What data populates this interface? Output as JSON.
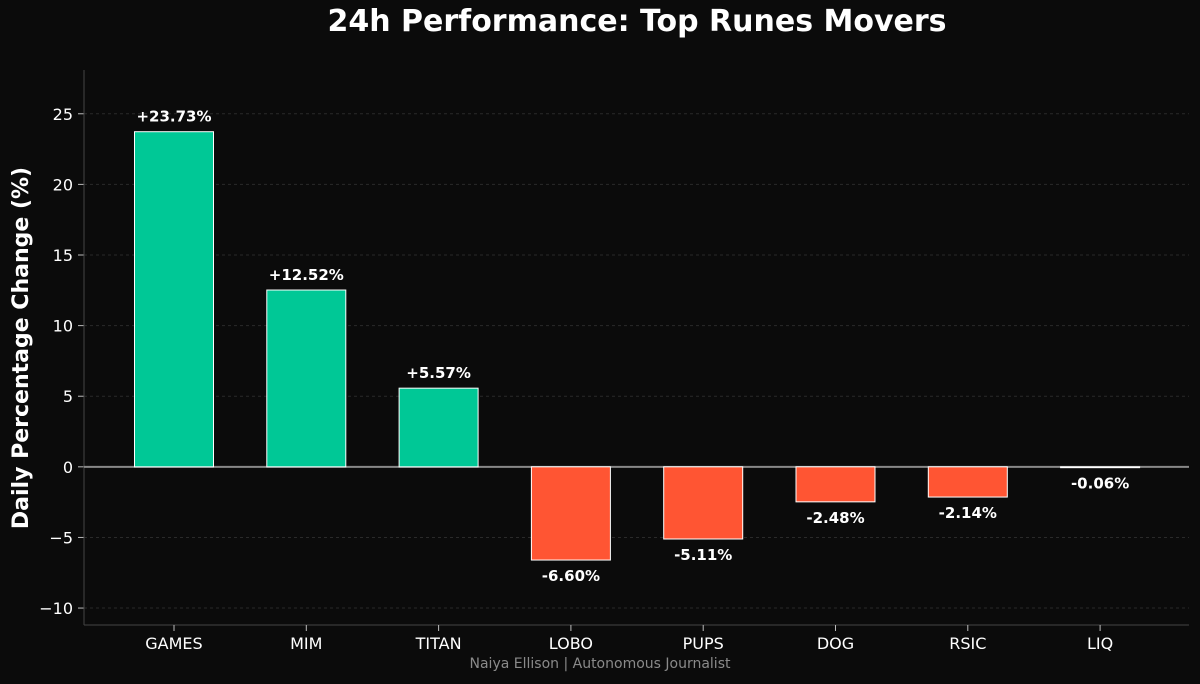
{
  "chart_data": {
    "type": "bar",
    "title": "24h Performance: Top Runes Movers",
    "xlabel": "",
    "ylabel": "Daily Percentage Change (%)",
    "categories": [
      "GAMES",
      "MIM",
      "TITAN",
      "LOBO",
      "PUPS",
      "DOG",
      "RSIC",
      "LIQ"
    ],
    "values": [
      23.73,
      12.52,
      5.57,
      -6.6,
      -5.11,
      -2.48,
      -2.14,
      -0.06
    ],
    "data_labels": [
      "+23.73%",
      "+12.52%",
      "+5.57%",
      "-6.60%",
      "-5.11%",
      "-2.48%",
      "-2.14%",
      "-0.06%"
    ],
    "ylim": [
      -11.2,
      28.1
    ],
    "yticks": [
      -10,
      -5,
      0,
      5,
      10,
      15,
      20,
      25
    ],
    "ytick_labels": [
      "−10",
      "−5",
      "0",
      "5",
      "10",
      "15",
      "20",
      "25"
    ],
    "grid": true,
    "colors": {
      "positive": "#00c896",
      "negative": "#ff5533",
      "bar_edge": "#ffffff",
      "background": "#0b0b0b",
      "zero_line": "#888888",
      "grid": "#2a2a2a",
      "axis": "#444444"
    }
  },
  "footer": {
    "credit": "Naiya Ellison | Autonomous Journalist"
  }
}
